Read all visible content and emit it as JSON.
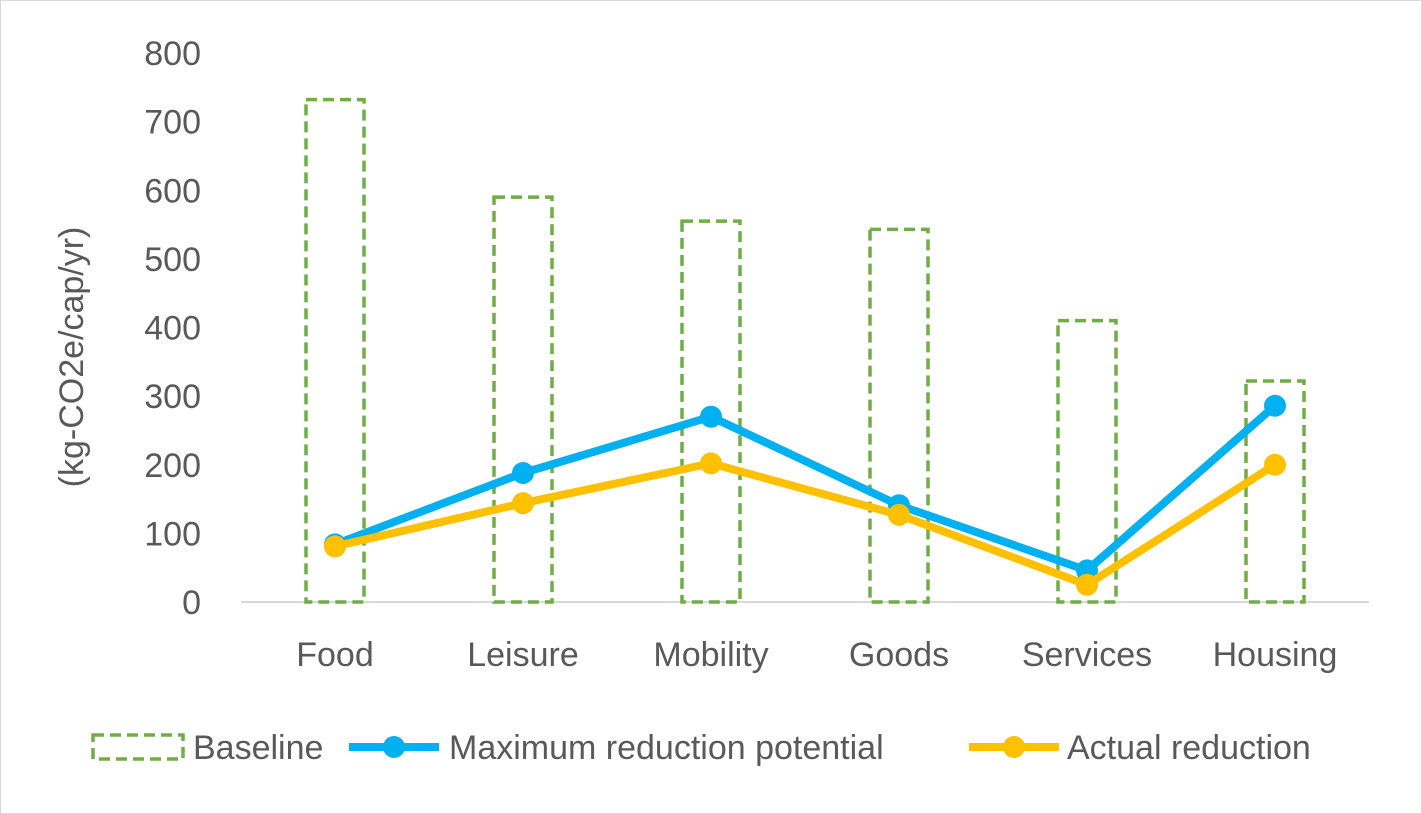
{
  "chart_data": {
    "type": "bar",
    "categories": [
      "Food",
      "Leisure",
      "Mobility",
      "Goods",
      "Services",
      "Housing"
    ],
    "series": [
      {
        "name": "Baseline",
        "type": "bar",
        "style": "dashed-outline",
        "color": "#70ad47",
        "values": [
          732,
          590,
          555,
          543,
          410,
          322
        ]
      },
      {
        "name": "Maximum reduction potential",
        "type": "line",
        "color": "#00b0f0",
        "values": [
          84,
          188,
          270,
          141,
          46,
          286
        ]
      },
      {
        "name": "Actual reduction",
        "type": "line",
        "color": "#ffc000",
        "values": [
          81,
          144,
          202,
          127,
          25,
          200
        ]
      }
    ],
    "ylabel": "(kg-CO2e/cap/yr)",
    "ylim": [
      0,
      800
    ],
    "yticks": [
      "0",
      "100",
      "200",
      "300",
      "400",
      "500",
      "600",
      "700",
      "800"
    ],
    "grid": false,
    "legend_position": "bottom"
  }
}
